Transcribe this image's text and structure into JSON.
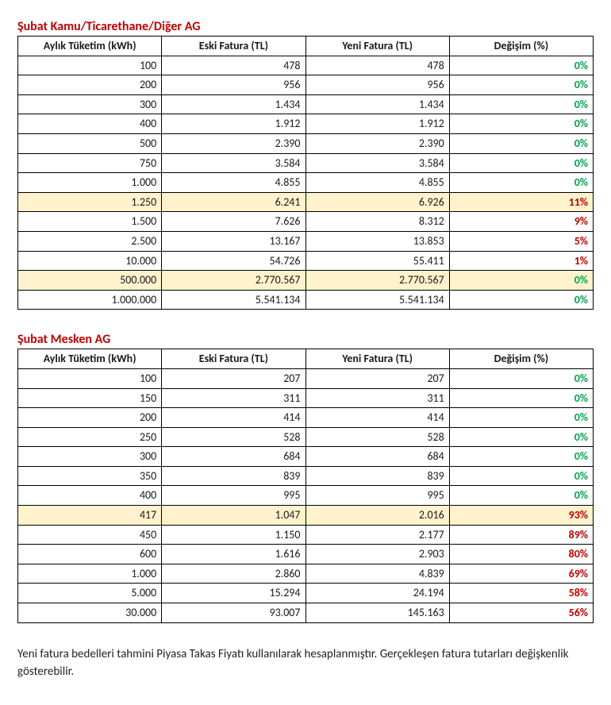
{
  "colors": {
    "title": "#c00000",
    "highlight_bg": "#fff2cc",
    "zero_pct": "#00a650",
    "pos_pct": "#c00000",
    "border": "#000000"
  },
  "footnote": "Yeni fatura bedelleri tahmini Piyasa Takas Fiyatı kullanılarak hesaplanmıştır. Gerçekleşen fatura tutarları değişkenlik gösterebilir.",
  "table1": {
    "title": "Şubat Kamu/Ticarethane/Diğer AG",
    "headers": [
      "Aylık Tüketim (kWh)",
      "Eski Fatura (TL)",
      "Yeni Fatura (TL)",
      "Değişim (%)"
    ],
    "rows": [
      {
        "c": [
          "100",
          "478",
          "478",
          "0%"
        ],
        "hl": false,
        "zero": true
      },
      {
        "c": [
          "200",
          "956",
          "956",
          "0%"
        ],
        "hl": false,
        "zero": true
      },
      {
        "c": [
          "300",
          "1.434",
          "1.434",
          "0%"
        ],
        "hl": false,
        "zero": true
      },
      {
        "c": [
          "400",
          "1.912",
          "1.912",
          "0%"
        ],
        "hl": false,
        "zero": true
      },
      {
        "c": [
          "500",
          "2.390",
          "2.390",
          "0%"
        ],
        "hl": false,
        "zero": true
      },
      {
        "c": [
          "750",
          "3.584",
          "3.584",
          "0%"
        ],
        "hl": false,
        "zero": true
      },
      {
        "c": [
          "1.000",
          "4.855",
          "4.855",
          "0%"
        ],
        "hl": false,
        "zero": true
      },
      {
        "c": [
          "1.250",
          "6.241",
          "6.926",
          "11%"
        ],
        "hl": true,
        "zero": false
      },
      {
        "c": [
          "1.500",
          "7.626",
          "8.312",
          "9%"
        ],
        "hl": false,
        "zero": false
      },
      {
        "c": [
          "2.500",
          "13.167",
          "13.853",
          "5%"
        ],
        "hl": false,
        "zero": false
      },
      {
        "c": [
          "10.000",
          "54.726",
          "55.411",
          "1%"
        ],
        "hl": false,
        "zero": false
      },
      {
        "c": [
          "500.000",
          "2.770.567",
          "2.770.567",
          "0%"
        ],
        "hl": true,
        "zero": true
      },
      {
        "c": [
          "1.000.000",
          "5.541.134",
          "5.541.134",
          "0%"
        ],
        "hl": false,
        "zero": true
      }
    ]
  },
  "table2": {
    "title": "Şubat Mesken AG",
    "headers": [
      "Aylık Tüketim (kWh)",
      "Eski Fatura (TL)",
      "Yeni Fatura (TL)",
      "Değişim (%)"
    ],
    "rows": [
      {
        "c": [
          "100",
          "207",
          "207",
          "0%"
        ],
        "hl": false,
        "zero": true
      },
      {
        "c": [
          "150",
          "311",
          "311",
          "0%"
        ],
        "hl": false,
        "zero": true
      },
      {
        "c": [
          "200",
          "414",
          "414",
          "0%"
        ],
        "hl": false,
        "zero": true
      },
      {
        "c": [
          "250",
          "528",
          "528",
          "0%"
        ],
        "hl": false,
        "zero": true
      },
      {
        "c": [
          "300",
          "684",
          "684",
          "0%"
        ],
        "hl": false,
        "zero": true
      },
      {
        "c": [
          "350",
          "839",
          "839",
          "0%"
        ],
        "hl": false,
        "zero": true
      },
      {
        "c": [
          "400",
          "995",
          "995",
          "0%"
        ],
        "hl": false,
        "zero": true
      },
      {
        "c": [
          "417",
          "1.047",
          "2.016",
          "93%"
        ],
        "hl": true,
        "zero": false
      },
      {
        "c": [
          "450",
          "1.150",
          "2.177",
          "89%"
        ],
        "hl": false,
        "zero": false
      },
      {
        "c": [
          "600",
          "1.616",
          "2.903",
          "80%"
        ],
        "hl": false,
        "zero": false
      },
      {
        "c": [
          "1.000",
          "2.860",
          "4.839",
          "69%"
        ],
        "hl": false,
        "zero": false
      },
      {
        "c": [
          "5.000",
          "15.294",
          "24.194",
          "58%"
        ],
        "hl": false,
        "zero": false
      },
      {
        "c": [
          "30.000",
          "93.007",
          "145.163",
          "56%"
        ],
        "hl": false,
        "zero": false
      }
    ]
  }
}
